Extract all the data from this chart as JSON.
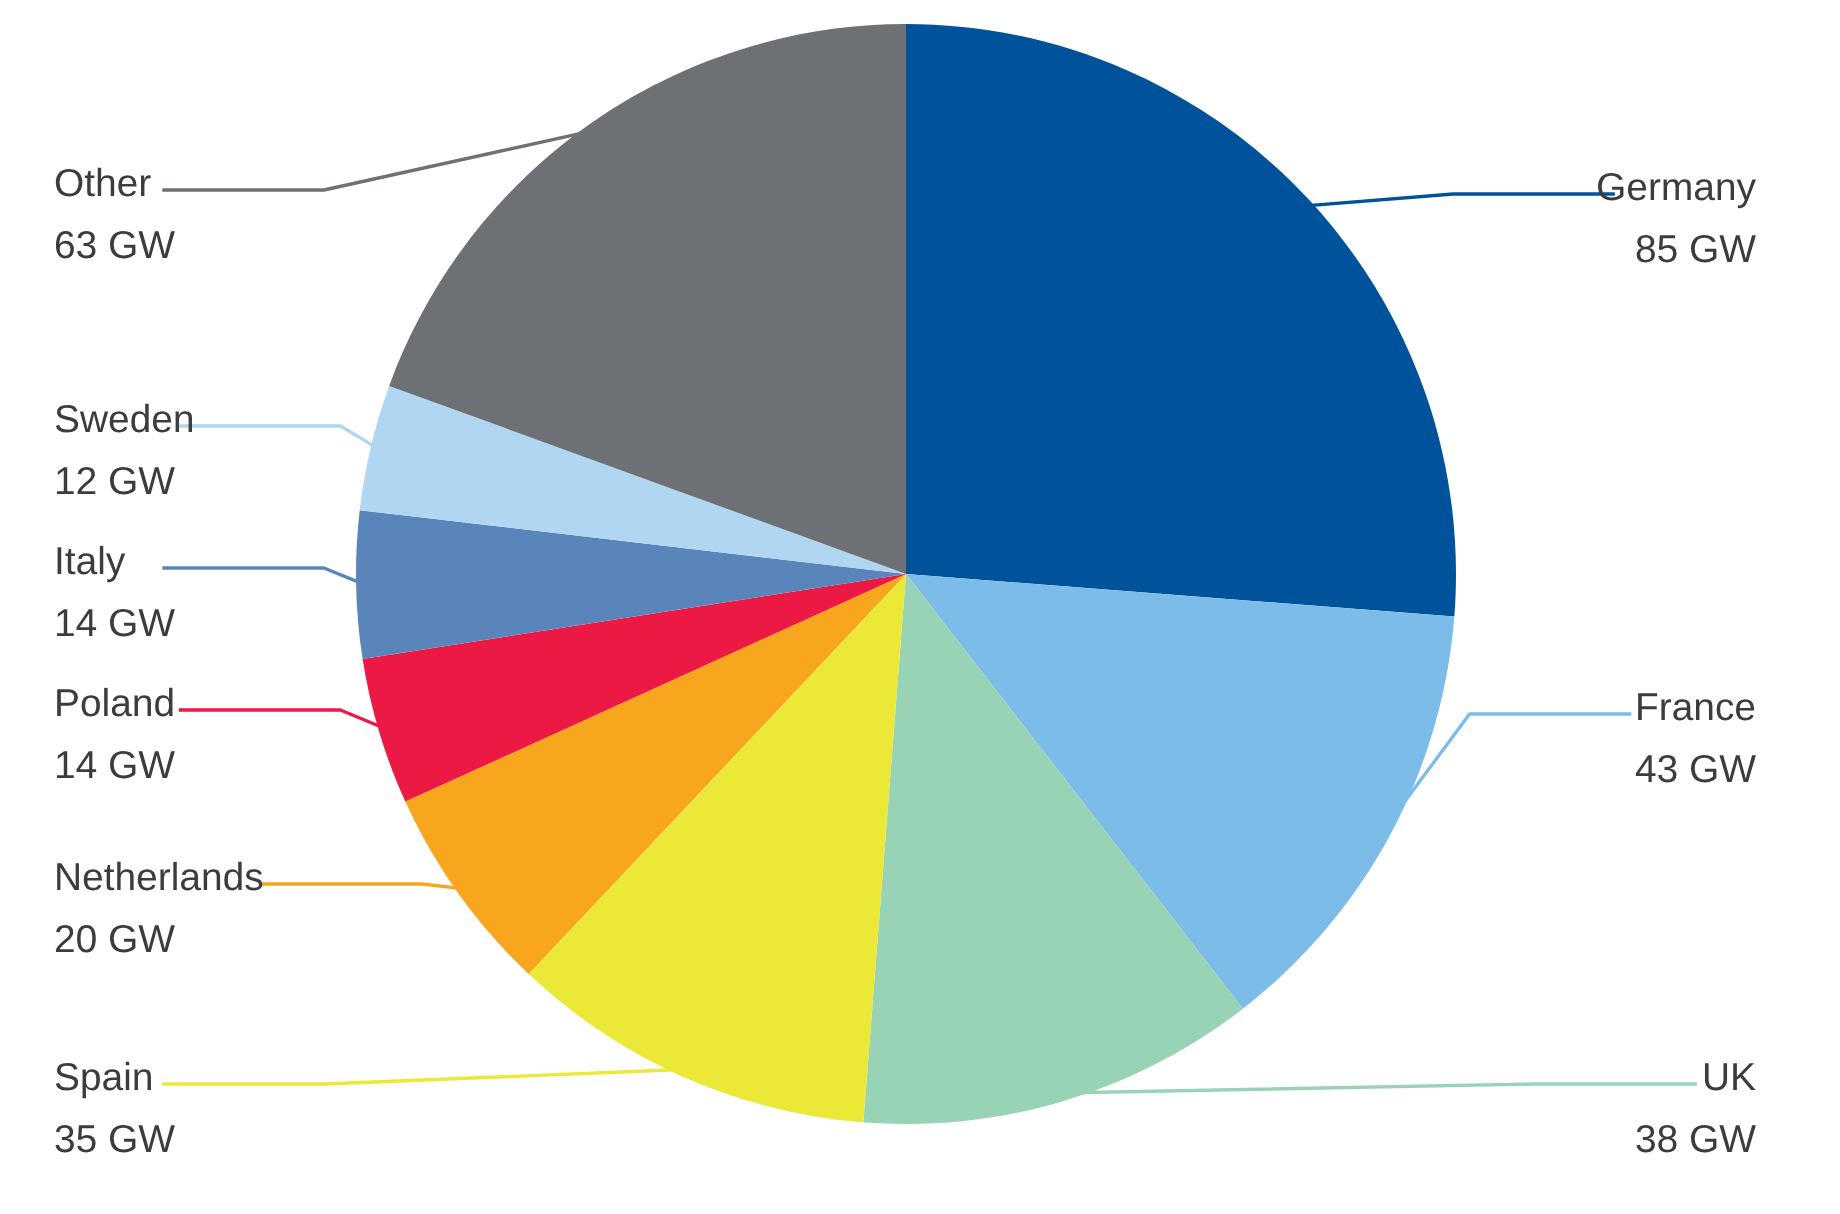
{
  "chart_data": {
    "type": "pie",
    "categories": [
      "Germany",
      "France",
      "UK",
      "Spain",
      "Netherlands",
      "Poland",
      "Italy",
      "Sweden",
      "Other"
    ],
    "values": [
      85,
      43,
      38,
      35,
      20,
      14,
      14,
      12,
      63
    ],
    "value_labels": [
      "85 GW",
      "43 GW",
      "38 GW",
      "35 GW",
      "20 GW",
      "14 GW",
      "14 GW",
      "12 GW",
      "63 GW"
    ],
    "colors": [
      "#00539b",
      "#7bbde8",
      "#99d3b5",
      "#ebe837",
      "#f9a61f",
      "#ec1944",
      "#5a85bb",
      "#b1d6f2",
      "#6d7175"
    ]
  }
}
